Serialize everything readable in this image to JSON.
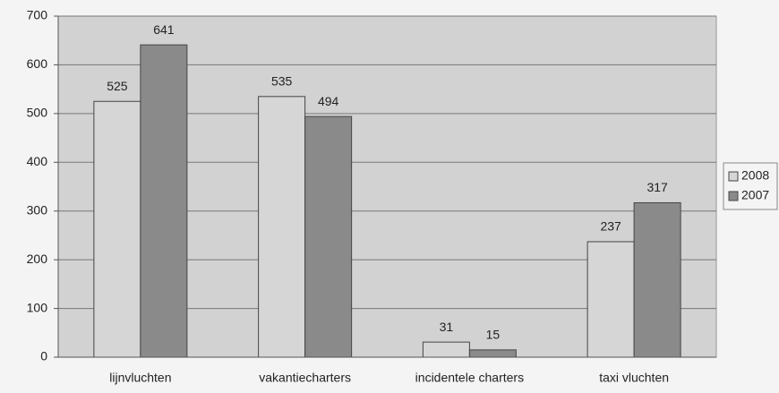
{
  "chart_data": {
    "type": "bar",
    "categories": [
      "lijnvluchten",
      "vakantiecharters",
      "incidentele charters",
      "taxi vluchten"
    ],
    "series": [
      {
        "name": "2008",
        "color": "#d6d6d6",
        "values": [
          525,
          535,
          31,
          237
        ]
      },
      {
        "name": "2007",
        "color": "#8a8a8a",
        "values": [
          641,
          494,
          15,
          317
        ]
      }
    ],
    "ylim": [
      0,
      700
    ],
    "yticks": [
      0,
      100,
      200,
      300,
      400,
      500,
      600,
      700
    ],
    "grid": true,
    "legend": "right"
  }
}
